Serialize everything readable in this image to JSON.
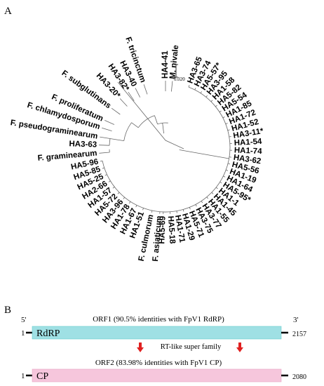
{
  "panel_a": {
    "letter": "A",
    "scale_label": "0.020",
    "top_taxa": [
      "M. nivale",
      "HA4-41",
      "F. tricinctum",
      "HA3-40",
      "HA3-82*",
      "HA3-20*",
      "F. subglutinans",
      "F. proliferatum",
      "F. chlamydosporum",
      "F. pseudograminearum",
      "HA3-63",
      "F. graminearum"
    ],
    "right_taxa": [
      "HA3-65",
      "HA3-74",
      "HA5-57*",
      "HA3-95",
      "HA1-58",
      "HA5-82",
      "HA5-54",
      "HA1-85",
      "HA1-72",
      "HA1-52",
      "HA3-11*",
      "HA1-54",
      "HA1-74",
      "HA3-62",
      "HA5-56",
      "HA1-19",
      "HA1-64",
      "HA5-95*",
      "HA1-1",
      "HA1-45",
      "HA1-55",
      "HA3-77",
      "HA3-75",
      "HA5-71",
      "HA1-29",
      "HA1-71",
      "HA5-18",
      "HA5-69"
    ],
    "bottom_taxa": [
      "F. asiaticum",
      "F. culmorum"
    ],
    "left_taxa": [
      "HA1-51",
      "HA1-67",
      "HA1-78",
      "HA3-96",
      "HA5-72",
      "HA1-57",
      "HA2-66",
      "HA5-25",
      "HA5-85",
      "HA5-96"
    ]
  },
  "panel_b": {
    "letter": "B",
    "five_prime": "5'",
    "three_prime": "3'",
    "orf1": {
      "title": "ORF1 (90.5% identities with FpV1 RdRP)",
      "start": "1",
      "end": "2157",
      "domain_label": "RdRP",
      "color": "#9fe0e4"
    },
    "rt_label": "RT-like super family",
    "orf2": {
      "title": "ORF2 (83.98% identities with FpV1 CP)",
      "start": "1",
      "end": "2080",
      "domain_label": "CP",
      "color": "#f6c6dc"
    },
    "arrow_color": "#e02020"
  }
}
